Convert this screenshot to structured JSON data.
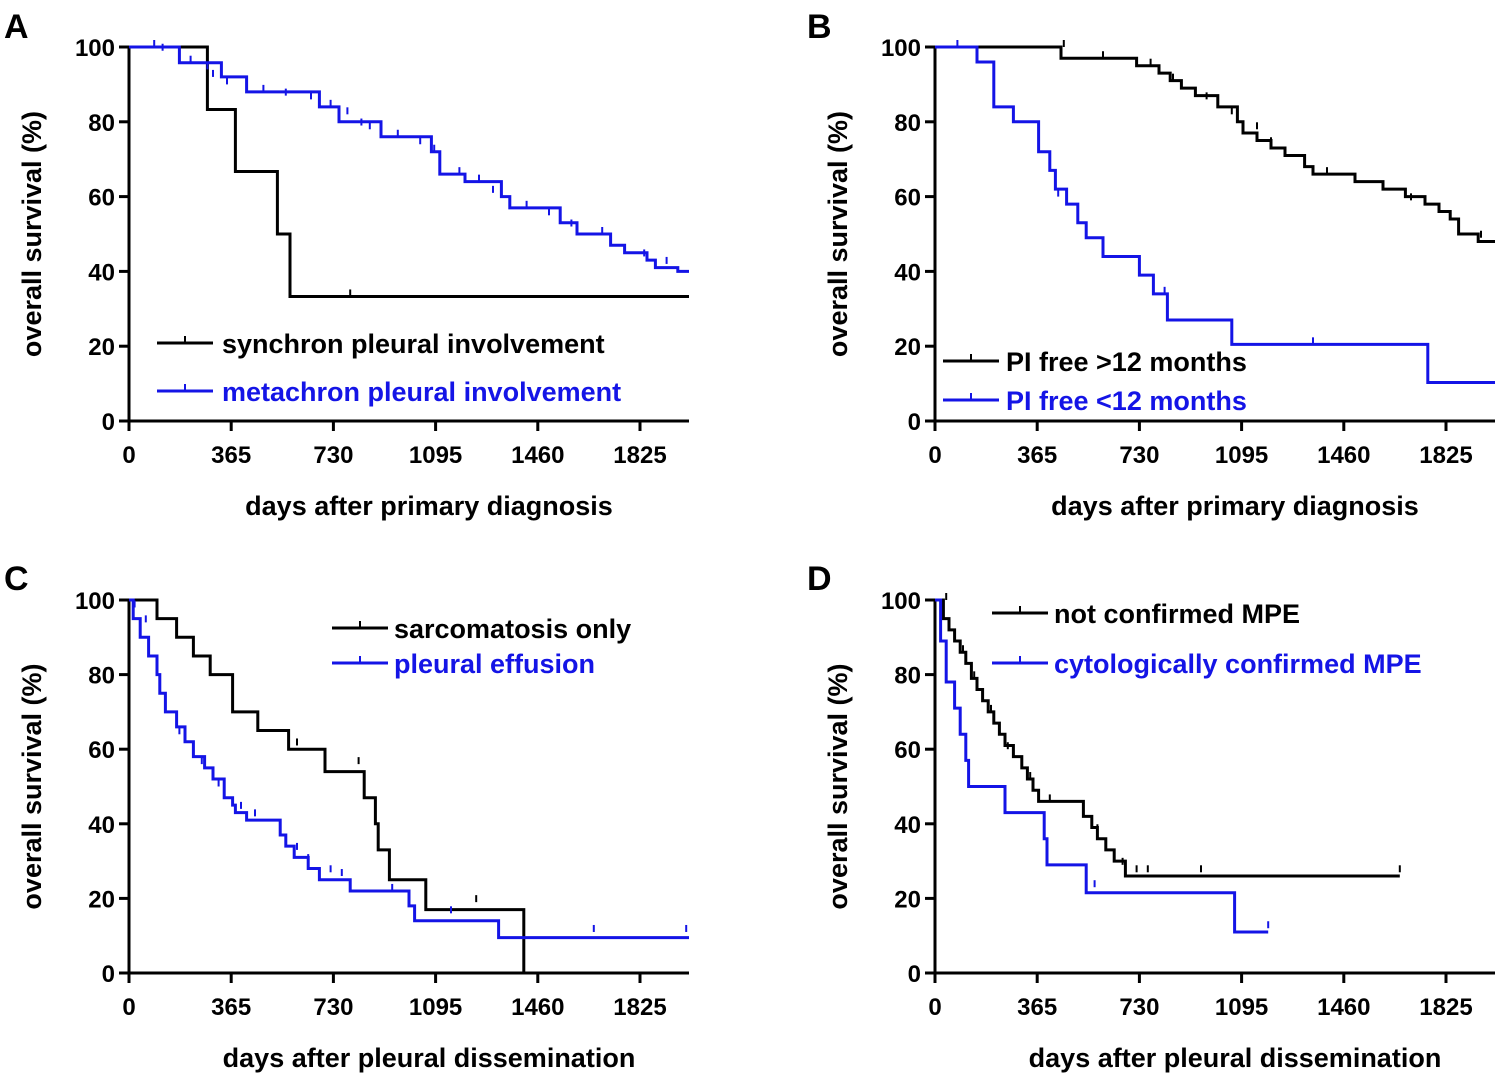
{
  "chart_data": [
    {
      "panel": "A",
      "type": "line",
      "subtype": "kaplan-meier",
      "xlabel": "days after primary diagnosis",
      "ylabel": "overall survival (%)",
      "xlim": [
        0,
        2000
      ],
      "ylim": [
        0,
        100
      ],
      "xticks": [
        0,
        365,
        730,
        1095,
        1460,
        1825
      ],
      "yticks": [
        0,
        20,
        40,
        60,
        80,
        100
      ],
      "legend_position": "bottom-left",
      "series": [
        {
          "name": "synchron pleural involvement",
          "color": "#000000",
          "steps": [
            [
              0,
              100
            ],
            [
              280,
              83.3
            ],
            [
              380,
              66.7
            ],
            [
              530,
              50
            ],
            [
              575,
              33.3
            ],
            [
              2000,
              33.3
            ]
          ],
          "censors": [
            [
              790,
              33.3
            ]
          ]
        },
        {
          "name": "metachron pleural involvement",
          "color": "#1414e6",
          "steps": [
            [
              0,
              100
            ],
            [
              180,
              95.8
            ],
            [
              330,
              92
            ],
            [
              420,
              88
            ],
            [
              680,
              84
            ],
            [
              750,
              80
            ],
            [
              900,
              76
            ],
            [
              1080,
              72
            ],
            [
              1110,
              66
            ],
            [
              1200,
              64
            ],
            [
              1330,
              60
            ],
            [
              1360,
              57
            ],
            [
              1540,
              53
            ],
            [
              1600,
              50
            ],
            [
              1720,
              47
            ],
            [
              1770,
              45
            ],
            [
              1850,
              43
            ],
            [
              1880,
              41
            ],
            [
              1960,
              40
            ],
            [
              2000,
              40
            ]
          ],
          "censors": [
            [
              90,
              100
            ],
            [
              120,
              99
            ],
            [
              220,
              95.8
            ],
            [
              280,
              94
            ],
            [
              300,
              92
            ],
            [
              350,
              90
            ],
            [
              480,
              88
            ],
            [
              560,
              87
            ],
            [
              650,
              86
            ],
            [
              720,
              84
            ],
            [
              780,
              82
            ],
            [
              830,
              79
            ],
            [
              860,
              78
            ],
            [
              960,
              76
            ],
            [
              1040,
              74
            ],
            [
              1090,
              72
            ],
            [
              1180,
              66
            ],
            [
              1250,
              64
            ],
            [
              1300,
              61
            ],
            [
              1420,
              57
            ],
            [
              1500,
              55
            ],
            [
              1580,
              52
            ],
            [
              1690,
              50
            ],
            [
              1840,
              44
            ],
            [
              1920,
              42
            ]
          ]
        }
      ]
    },
    {
      "panel": "B",
      "type": "line",
      "subtype": "kaplan-meier",
      "xlabel": "days after primary diagnosis",
      "ylabel": "overall survival (%)",
      "xlim": [
        0,
        2000
      ],
      "ylim": [
        0,
        100
      ],
      "xticks": [
        0,
        365,
        730,
        1095,
        1460,
        1825
      ],
      "yticks": [
        0,
        20,
        40,
        60,
        80,
        100
      ],
      "legend_position": "bottom-left",
      "series": [
        {
          "name": "PI free >12 months",
          "color": "#000000",
          "steps": [
            [
              0,
              100
            ],
            [
              450,
              97
            ],
            [
              720,
              95
            ],
            [
              800,
              93
            ],
            [
              840,
              91
            ],
            [
              880,
              89
            ],
            [
              930,
              87
            ],
            [
              1010,
              84
            ],
            [
              1080,
              80
            ],
            [
              1100,
              77
            ],
            [
              1150,
              75
            ],
            [
              1200,
              73
            ],
            [
              1250,
              71
            ],
            [
              1320,
              68
            ],
            [
              1350,
              66
            ],
            [
              1500,
              64
            ],
            [
              1600,
              62
            ],
            [
              1680,
              60
            ],
            [
              1750,
              58
            ],
            [
              1800,
              56
            ],
            [
              1840,
              54
            ],
            [
              1870,
              50
            ],
            [
              1940,
              48
            ],
            [
              2000,
              48
            ]
          ],
          "censors": [
            [
              460,
              100
            ],
            [
              600,
              97
            ],
            [
              770,
              95
            ],
            [
              850,
              91
            ],
            [
              970,
              86
            ],
            [
              1060,
              82
            ],
            [
              1150,
              78
            ],
            [
              1200,
              74
            ],
            [
              1400,
              66
            ],
            [
              1700,
              59
            ],
            [
              1950,
              49
            ]
          ]
        },
        {
          "name": "PI free  <12 months",
          "color": "#1414e6",
          "steps": [
            [
              0,
              100
            ],
            [
              150,
              96
            ],
            [
              210,
              84
            ],
            [
              280,
              80
            ],
            [
              370,
              72
            ],
            [
              410,
              67
            ],
            [
              430,
              62
            ],
            [
              470,
              58
            ],
            [
              510,
              53
            ],
            [
              540,
              49
            ],
            [
              600,
              44
            ],
            [
              730,
              39
            ],
            [
              780,
              34
            ],
            [
              830,
              27
            ],
            [
              1060,
              20.5
            ],
            [
              1760,
              10.3
            ],
            [
              2000,
              10.3
            ]
          ],
          "censors": [
            [
              80,
              100
            ],
            [
              440,
              60
            ],
            [
              820,
              34
            ],
            [
              1350,
              20.5
            ]
          ]
        }
      ]
    },
    {
      "panel": "C",
      "type": "line",
      "subtype": "kaplan-meier",
      "xlabel": "days after pleural dissemination",
      "ylabel": "overall survival (%)",
      "xlim": [
        0,
        2000
      ],
      "ylim": [
        0,
        100
      ],
      "xticks": [
        0,
        365,
        730,
        1095,
        1460,
        1825
      ],
      "yticks": [
        0,
        20,
        40,
        60,
        80,
        100
      ],
      "legend_position": "top-right",
      "series": [
        {
          "name": "sarcomatosis only",
          "color": "#000000",
          "steps": [
            [
              0,
              100
            ],
            [
              100,
              95
            ],
            [
              170,
              90
            ],
            [
              230,
              85
            ],
            [
              290,
              80
            ],
            [
              370,
              70
            ],
            [
              460,
              65
            ],
            [
              570,
              60
            ],
            [
              700,
              54
            ],
            [
              840,
              47
            ],
            [
              880,
              40
            ],
            [
              890,
              33
            ],
            [
              930,
              25
            ],
            [
              1060,
              17
            ],
            [
              1410,
              0
            ]
          ],
          "censors": [
            [
              600,
              61
            ],
            [
              820,
              56
            ],
            [
              1240,
              19
            ]
          ]
        },
        {
          "name": "pleural effusion",
          "color": "#1414e6",
          "steps": [
            [
              0,
              100
            ],
            [
              15,
              95
            ],
            [
              40,
              90
            ],
            [
              70,
              85
            ],
            [
              100,
              80
            ],
            [
              110,
              75
            ],
            [
              130,
              70
            ],
            [
              170,
              66
            ],
            [
              200,
              62
            ],
            [
              230,
              58
            ],
            [
              270,
              55
            ],
            [
              300,
              52
            ],
            [
              340,
              47
            ],
            [
              370,
              45
            ],
            [
              380,
              43
            ],
            [
              420,
              41
            ],
            [
              540,
              37
            ],
            [
              560,
              34
            ],
            [
              590,
              31
            ],
            [
              640,
              28
            ],
            [
              680,
              25
            ],
            [
              790,
              22
            ],
            [
              1000,
              18
            ],
            [
              1020,
              14
            ],
            [
              1320,
              9.5
            ],
            [
              2000,
              9.5
            ]
          ],
          "censors": [
            [
              20,
              98
            ],
            [
              60,
              94
            ],
            [
              130,
              72
            ],
            [
              180,
              64
            ],
            [
              260,
              56
            ],
            [
              320,
              50
            ],
            [
              400,
              44
            ],
            [
              450,
              42
            ],
            [
              600,
              33
            ],
            [
              640,
              30
            ],
            [
              720,
              27
            ],
            [
              760,
              26
            ],
            [
              940,
              22
            ],
            [
              1150,
              16
            ],
            [
              1660,
              11
            ],
            [
              1990,
              11
            ]
          ]
        }
      ]
    },
    {
      "panel": "D",
      "type": "line",
      "subtype": "kaplan-meier",
      "xlabel": "days after pleural dissemination",
      "ylabel": "overall survival (%)",
      "xlim": [
        0,
        2000
      ],
      "ylim": [
        0,
        100
      ],
      "xticks": [
        0,
        365,
        730,
        1095,
        1460,
        1825
      ],
      "yticks": [
        0,
        20,
        40,
        60,
        80,
        100
      ],
      "legend_position": "top-right",
      "series": [
        {
          "name": "not confirmed MPE",
          "color": "#000000",
          "steps": [
            [
              0,
              100
            ],
            [
              30,
              95
            ],
            [
              50,
              92
            ],
            [
              70,
              89
            ],
            [
              90,
              86
            ],
            [
              110,
              83
            ],
            [
              130,
              79
            ],
            [
              150,
              76
            ],
            [
              170,
              73
            ],
            [
              190,
              70
            ],
            [
              210,
              67
            ],
            [
              230,
              64
            ],
            [
              250,
              61
            ],
            [
              280,
              58
            ],
            [
              310,
              55
            ],
            [
              330,
              52
            ],
            [
              350,
              49
            ],
            [
              370,
              46
            ],
            [
              530,
              42
            ],
            [
              560,
              39
            ],
            [
              580,
              36
            ],
            [
              610,
              33
            ],
            [
              640,
              30
            ],
            [
              680,
              26
            ],
            [
              1660,
              26
            ]
          ],
          "censors": [
            [
              40,
              100
            ],
            [
              100,
              86
            ],
            [
              140,
              79
            ],
            [
              200,
              70
            ],
            [
              260,
              60
            ],
            [
              340,
              52
            ],
            [
              410,
              46
            ],
            [
              580,
              38
            ],
            [
              670,
              29
            ],
            [
              720,
              27
            ],
            [
              760,
              27
            ],
            [
              950,
              27
            ],
            [
              1660,
              27
            ]
          ]
        },
        {
          "name": "cytologically confirmed MPE",
          "color": "#1414e6",
          "steps": [
            [
              0,
              100
            ],
            [
              20,
              89
            ],
            [
              40,
              78
            ],
            [
              70,
              71
            ],
            [
              90,
              64
            ],
            [
              110,
              57
            ],
            [
              120,
              50
            ],
            [
              250,
              43
            ],
            [
              390,
              36
            ],
            [
              400,
              29
            ],
            [
              540,
              21.5
            ],
            [
              1070,
              21.5
            ],
            [
              1070,
              11
            ],
            [
              1190,
              11
            ]
          ],
          "censors": [
            [
              20,
              98
            ],
            [
              570,
              23
            ],
            [
              1190,
              12
            ]
          ]
        }
      ]
    }
  ]
}
